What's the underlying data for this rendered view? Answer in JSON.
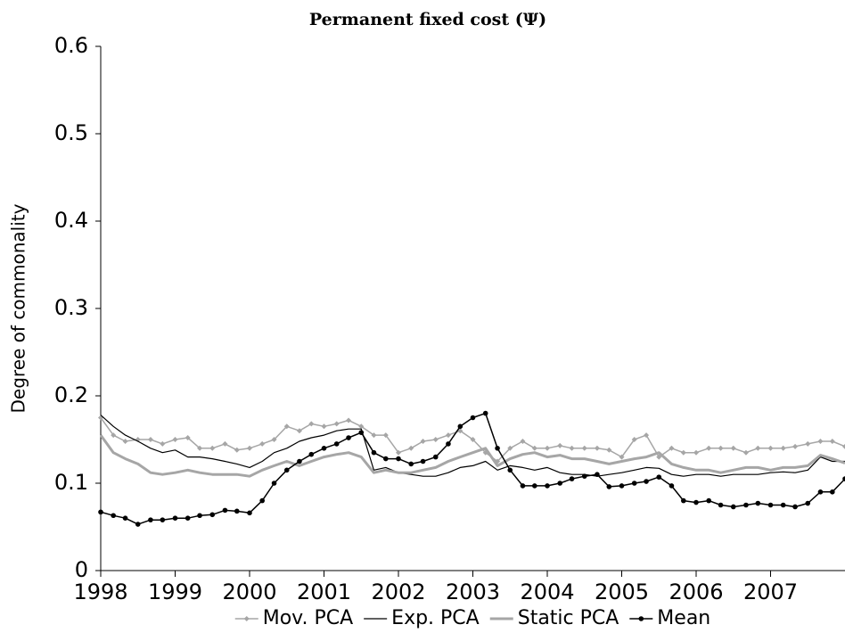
{
  "chart_data": {
    "type": "line",
    "title": "Permanent fixed cost (Ψ)",
    "y_label": "Degree of commonality",
    "x": [
      1998,
      1998.17,
      1998.33,
      1998.5,
      1998.67,
      1998.83,
      1999,
      1999.17,
      1999.33,
      1999.5,
      1999.67,
      1999.83,
      2000,
      2000.17,
      2000.33,
      2000.5,
      2000.67,
      2000.83,
      2001,
      2001.17,
      2001.33,
      2001.5,
      2001.67,
      2001.83,
      2002,
      2002.17,
      2002.33,
      2002.5,
      2002.67,
      2002.83,
      2003,
      2003.17,
      2003.33,
      2003.5,
      2003.67,
      2003.83,
      2004,
      2004.17,
      2004.33,
      2004.5,
      2004.67,
      2004.83,
      2005,
      2005.17,
      2005.33,
      2005.5,
      2005.67,
      2005.83,
      2006,
      2006.17,
      2006.33,
      2006.5,
      2006.67,
      2006.83,
      2007,
      2007.17,
      2007.33,
      2007.5,
      2007.67,
      2007.83,
      2008
    ],
    "series": [
      {
        "name": "Mov. PCA",
        "color": "#a6a6a6",
        "marker": "diamond",
        "width": 1.5,
        "values": [
          0.175,
          0.155,
          0.148,
          0.15,
          0.15,
          0.145,
          0.15,
          0.152,
          0.14,
          0.14,
          0.145,
          0.138,
          0.14,
          0.145,
          0.15,
          0.165,
          0.16,
          0.168,
          0.165,
          0.168,
          0.172,
          0.165,
          0.155,
          0.155,
          0.135,
          0.14,
          0.148,
          0.15,
          0.155,
          0.16,
          0.15,
          0.135,
          0.125,
          0.14,
          0.148,
          0.14,
          0.14,
          0.143,
          0.14,
          0.14,
          0.14,
          0.138,
          0.13,
          0.15,
          0.155,
          0.13,
          0.14,
          0.135,
          0.135,
          0.14,
          0.14,
          0.14,
          0.135,
          0.14,
          0.14,
          0.14,
          0.142,
          0.145,
          0.148,
          0.148,
          0.142
        ]
      },
      {
        "name": "Exp. PCA",
        "color": "#000000",
        "marker": "none",
        "width": 1.2,
        "values": [
          0.178,
          0.165,
          0.155,
          0.148,
          0.14,
          0.135,
          0.138,
          0.13,
          0.13,
          0.128,
          0.125,
          0.122,
          0.118,
          0.125,
          0.135,
          0.14,
          0.148,
          0.152,
          0.155,
          0.16,
          0.162,
          0.162,
          0.115,
          0.118,
          0.112,
          0.11,
          0.108,
          0.108,
          0.112,
          0.118,
          0.12,
          0.125,
          0.115,
          0.12,
          0.118,
          0.115,
          0.118,
          0.112,
          0.11,
          0.11,
          0.108,
          0.11,
          0.112,
          0.115,
          0.118,
          0.117,
          0.11,
          0.108,
          0.11,
          0.11,
          0.108,
          0.11,
          0.11,
          0.11,
          0.112,
          0.113,
          0.112,
          0.115,
          0.13,
          0.125,
          0.125
        ]
      },
      {
        "name": "Static PCA",
        "color": "#a6a6a6",
        "marker": "none",
        "width": 3,
        "values": [
          0.155,
          0.135,
          0.128,
          0.122,
          0.112,
          0.11,
          0.112,
          0.115,
          0.112,
          0.11,
          0.11,
          0.11,
          0.108,
          0.115,
          0.12,
          0.125,
          0.12,
          0.125,
          0.13,
          0.133,
          0.135,
          0.13,
          0.112,
          0.115,
          0.112,
          0.112,
          0.115,
          0.118,
          0.125,
          0.13,
          0.135,
          0.14,
          0.12,
          0.128,
          0.133,
          0.135,
          0.13,
          0.132,
          0.128,
          0.128,
          0.125,
          0.122,
          0.125,
          0.128,
          0.13,
          0.135,
          0.122,
          0.118,
          0.115,
          0.115,
          0.112,
          0.115,
          0.118,
          0.118,
          0.115,
          0.118,
          0.118,
          0.12,
          0.132,
          0.128,
          0.123
        ]
      },
      {
        "name": "Mean",
        "color": "#000000",
        "marker": "circle",
        "width": 1.5,
        "values": [
          0.067,
          0.063,
          0.06,
          0.053,
          0.058,
          0.058,
          0.06,
          0.06,
          0.063,
          0.064,
          0.069,
          0.068,
          0.066,
          0.08,
          0.1,
          0.115,
          0.125,
          0.133,
          0.14,
          0.145,
          0.152,
          0.158,
          0.135,
          0.128,
          0.128,
          0.122,
          0.125,
          0.13,
          0.145,
          0.165,
          0.175,
          0.18,
          0.14,
          0.115,
          0.097,
          0.097,
          0.097,
          0.1,
          0.105,
          0.108,
          0.11,
          0.096,
          0.097,
          0.1,
          0.102,
          0.107,
          0.097,
          0.08,
          0.078,
          0.08,
          0.075,
          0.073,
          0.075,
          0.077,
          0.075,
          0.075,
          0.073,
          0.077,
          0.09,
          0.09,
          0.105
        ]
      }
    ],
    "xlim": [
      1998,
      2008
    ],
    "xticks": [
      1998,
      1999,
      2000,
      2001,
      2002,
      2003,
      2004,
      2005,
      2006,
      2007
    ],
    "ylim": [
      0,
      0.6
    ],
    "yticks": [
      0,
      0.1,
      0.2,
      0.3,
      0.4,
      0.5,
      0.6
    ],
    "legend": "bottom"
  }
}
